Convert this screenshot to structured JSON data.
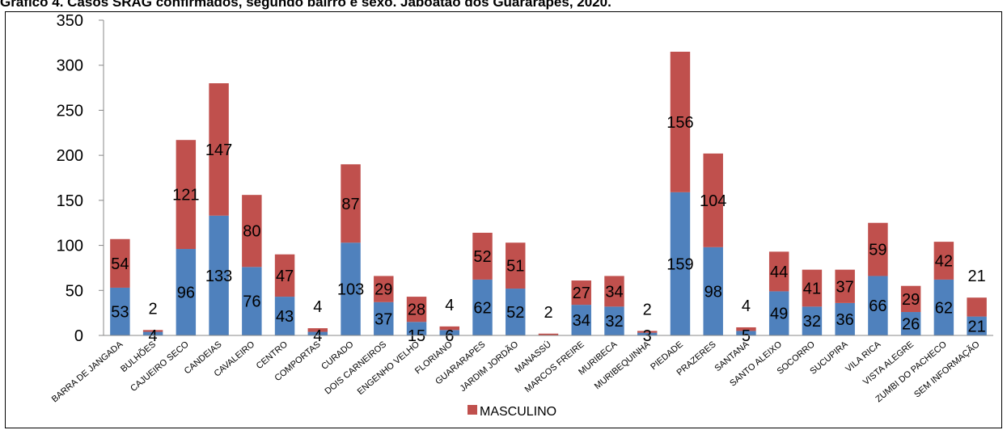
{
  "title": "Gráfico 4. Casos SRAG confirmados, segundo bairro e sexo. Jaboatão dos Guararapes, 2020.",
  "chart_data": {
    "type": "bar",
    "stacked": true,
    "title": "Gráfico 4. Casos SRAG confirmados, segundo bairro e sexo. Jaboatão dos Guararapes, 2020.",
    "xlabel": "",
    "ylabel": "",
    "ylim": [
      0,
      350
    ],
    "yticks": [
      0,
      50,
      100,
      150,
      200,
      250,
      300,
      350
    ],
    "grid": false,
    "legend_position": "bottom",
    "categories": [
      "BARRA DE JANGADA",
      "BULHÕES",
      "CAJUEIRO SECO",
      "CANDEIAS",
      "CAVALEIRO",
      "CENTRO",
      "COMPORTAS",
      "CURADO",
      "DOIS CARNEIROS",
      "ENGENHO VELHO",
      "FLORIANO",
      "GUARARAPES",
      "JARDIM JORDÃO",
      "MANASSÚ",
      "MARCOS FREIRE",
      "MURIBECA",
      "MURIBEQUINHA",
      "PIEDADE",
      "PRAZERES",
      "SANTANA",
      "SANTO ALEIXO",
      "SOCORRO",
      "SUCUPIRA",
      "VILA RICA",
      "VISTA ALEGRE",
      "ZUMBI DO PACHECO",
      "SEM INFORMAÇÃO"
    ],
    "series": [
      {
        "name": "",
        "color": "#4F81BD",
        "values": [
          53,
          4,
          96,
          133,
          76,
          43,
          4,
          103,
          37,
          15,
          6,
          62,
          52,
          null,
          34,
          32,
          3,
          159,
          98,
          5,
          49,
          32,
          36,
          66,
          26,
          62,
          21
        ]
      },
      {
        "name": "MASCULINO",
        "color": "#C0504D",
        "values": [
          54,
          2,
          121,
          147,
          80,
          47,
          4,
          87,
          29,
          28,
          4,
          52,
          51,
          2,
          27,
          34,
          2,
          156,
          104,
          4,
          44,
          41,
          37,
          59,
          29,
          42,
          21
        ]
      }
    ]
  }
}
